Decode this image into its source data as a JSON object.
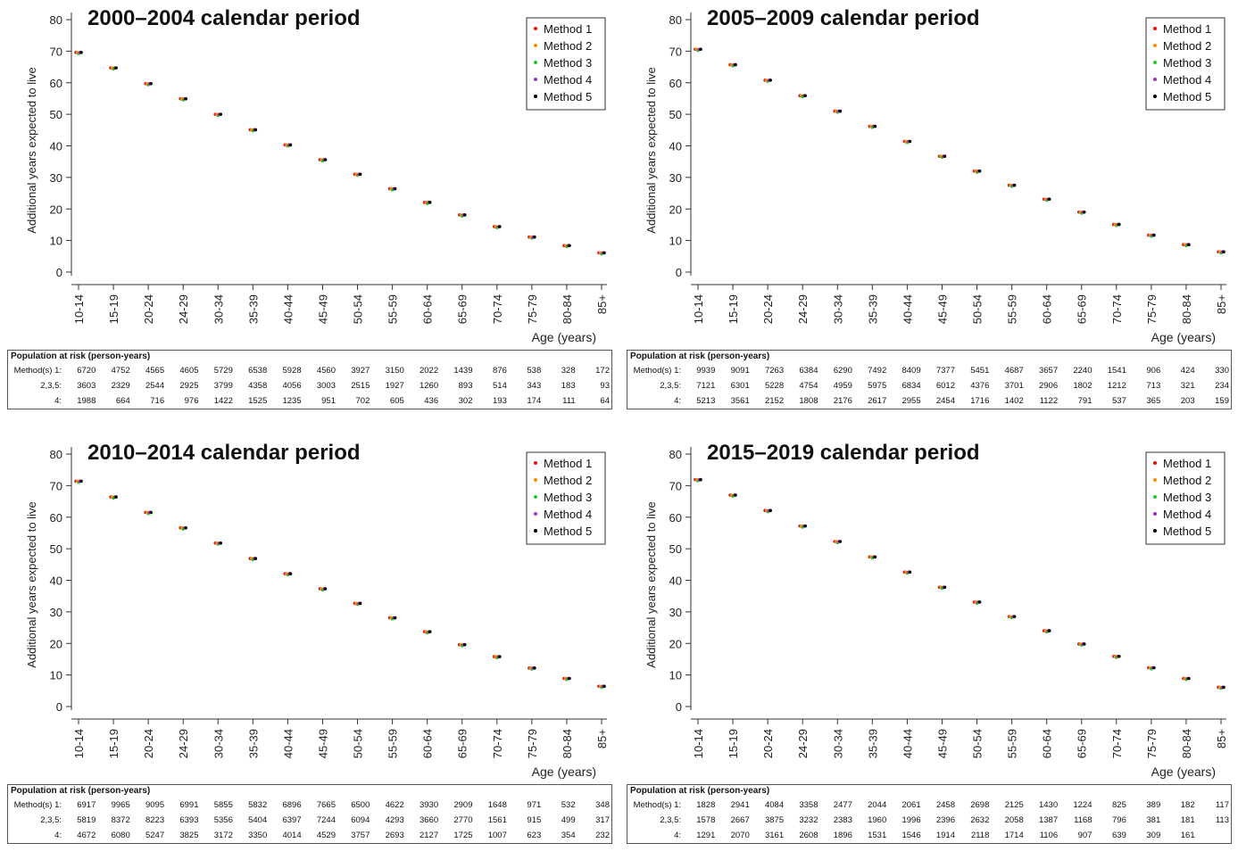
{
  "x_axis_label": "Age (years)",
  "y_axis_label": "Additional years expected to live",
  "risk_table_heading": "Population at risk (person-years)",
  "legend": [
    {
      "name": "Method 1",
      "color": "#ff0000"
    },
    {
      "name": "Method 2",
      "color": "#ff8c00"
    },
    {
      "name": "Method 3",
      "color": "#22cc22"
    },
    {
      "name": "Method 4",
      "color": "#9933cc"
    },
    {
      "name": "Method 5",
      "color": "#000000"
    }
  ],
  "chart_data": [
    {
      "type": "scatter",
      "title": "2000–2004 calendar period",
      "xlabel": "Age (years)",
      "ylabel": "Additional years expected to live",
      "categories": [
        "10-14",
        "15-19",
        "20-24",
        "24-29",
        "30-34",
        "35-39",
        "40-44",
        "45-49",
        "50-54",
        "55-59",
        "60-64",
        "65-69",
        "70-74",
        "75-79",
        "80-84",
        "85+"
      ],
      "values": [
        69.6,
        64.7,
        59.7,
        54.9,
        50.0,
        45.1,
        40.3,
        35.6,
        31.0,
        26.4,
        22.1,
        18.1,
        14.4,
        11.1,
        8.4,
        6.1
      ],
      "ylim": [
        0,
        80
      ],
      "yticks": [
        0,
        10,
        20,
        30,
        40,
        50,
        60,
        70,
        80
      ],
      "legend_position": "top-right",
      "risk_table": [
        {
          "label": "Method(s) 1:",
          "values": [
            "6720",
            "4752",
            "4565",
            "4605",
            "5729",
            "6538",
            "5928",
            "4560",
            "3927",
            "3150",
            "2022",
            "1439",
            "876",
            "538",
            "328",
            "172"
          ]
        },
        {
          "label": "2,3,5:",
          "values": [
            "3603",
            "2329",
            "2544",
            "2925",
            "3799",
            "4358",
            "4056",
            "3003",
            "2515",
            "1927",
            "1260",
            "893",
            "514",
            "343",
            "183",
            "93"
          ]
        },
        {
          "label": "4:",
          "values": [
            "1988",
            "664",
            "716",
            "976",
            "1422",
            "1525",
            "1235",
            "951",
            "702",
            "605",
            "436",
            "302",
            "193",
            "174",
            "111",
            "64"
          ]
        }
      ]
    },
    {
      "type": "scatter",
      "title": "2005–2009 calendar period",
      "xlabel": "Age (years)",
      "ylabel": "Additional years expected to live",
      "categories": [
        "10-14",
        "15-19",
        "20-24",
        "24-29",
        "30-34",
        "35-39",
        "40-44",
        "45-49",
        "50-54",
        "55-59",
        "60-64",
        "65-69",
        "70-74",
        "75-79",
        "80-84",
        "85+"
      ],
      "values": [
        70.6,
        65.7,
        60.8,
        55.9,
        51.0,
        46.2,
        41.4,
        36.7,
        32.0,
        27.5,
        23.1,
        19.0,
        15.1,
        11.7,
        8.7,
        6.4
      ],
      "ylim": [
        0,
        80
      ],
      "yticks": [
        0,
        10,
        20,
        30,
        40,
        50,
        60,
        70,
        80
      ],
      "legend_position": "top-right",
      "risk_table": [
        {
          "label": "Method(s) 1:",
          "values": [
            "9939",
            "9091",
            "7263",
            "6384",
            "6290",
            "7492",
            "8409",
            "7377",
            "5451",
            "4687",
            "3657",
            "2240",
            "1541",
            "906",
            "424",
            "330"
          ]
        },
        {
          "label": "2,3,5:",
          "values": [
            "7121",
            "6301",
            "5228",
            "4754",
            "4959",
            "5975",
            "6834",
            "6012",
            "4376",
            "3701",
            "2906",
            "1802",
            "1212",
            "713",
            "321",
            "234"
          ]
        },
        {
          "label": "4:",
          "values": [
            "5213",
            "3561",
            "2152",
            "1808",
            "2176",
            "2617",
            "2955",
            "2454",
            "1716",
            "1402",
            "1122",
            "791",
            "537",
            "365",
            "203",
            "159"
          ]
        }
      ]
    },
    {
      "type": "scatter",
      "title": "2010–2014 calendar period",
      "xlabel": "Age (years)",
      "ylabel": "Additional years expected to live",
      "categories": [
        "10-14",
        "15-19",
        "20-24",
        "24-29",
        "30-34",
        "35-39",
        "40-44",
        "45-49",
        "50-54",
        "55-59",
        "60-64",
        "65-69",
        "70-74",
        "75-79",
        "80-84",
        "85+"
      ],
      "values": [
        71.4,
        66.4,
        61.5,
        56.6,
        51.8,
        46.9,
        42.1,
        37.3,
        32.7,
        28.1,
        23.7,
        19.6,
        15.8,
        12.2,
        8.9,
        6.4
      ],
      "ylim": [
        0,
        80
      ],
      "yticks": [
        0,
        10,
        20,
        30,
        40,
        50,
        60,
        70,
        80
      ],
      "legend_position": "top-right",
      "risk_table": [
        {
          "label": "Method(s) 1:",
          "values": [
            "6917",
            "9965",
            "9095",
            "6991",
            "5855",
            "5832",
            "6896",
            "7665",
            "6500",
            "4622",
            "3930",
            "2909",
            "1648",
            "971",
            "532",
            "348"
          ]
        },
        {
          "label": "2,3,5:",
          "values": [
            "5819",
            "8372",
            "8223",
            "6393",
            "5356",
            "5404",
            "6397",
            "7244",
            "6094",
            "4293",
            "3660",
            "2770",
            "1561",
            "915",
            "499",
            "317"
          ]
        },
        {
          "label": "4:",
          "values": [
            "4672",
            "6080",
            "5247",
            "3825",
            "3172",
            "3350",
            "4014",
            "4529",
            "3757",
            "2693",
            "2127",
            "1725",
            "1007",
            "623",
            "354",
            "232"
          ]
        }
      ]
    },
    {
      "type": "scatter",
      "title": "2015–2019 calendar period",
      "xlabel": "Age (years)",
      "ylabel": "Additional years expected to live",
      "categories": [
        "10-14",
        "15-19",
        "20-24",
        "24-29",
        "30-34",
        "35-39",
        "40-44",
        "45-49",
        "50-54",
        "55-59",
        "60-64",
        "65-69",
        "70-74",
        "75-79",
        "80-84",
        "85+"
      ],
      "values": [
        71.9,
        67.0,
        62.1,
        57.2,
        52.3,
        47.4,
        42.6,
        37.8,
        33.1,
        28.5,
        24.0,
        19.8,
        15.9,
        12.3,
        8.9,
        6.1
      ],
      "ylim": [
        0,
        80
      ],
      "yticks": [
        0,
        10,
        20,
        30,
        40,
        50,
        60,
        70,
        80
      ],
      "legend_position": "top-right",
      "risk_table": [
        {
          "label": "Method(s) 1:",
          "values": [
            "1828",
            "2941",
            "4084",
            "3358",
            "2477",
            "2044",
            "2061",
            "2458",
            "2698",
            "2125",
            "1430",
            "1224",
            "825",
            "389",
            "182",
            "117"
          ]
        },
        {
          "label": "2,3,5:",
          "values": [
            "1578",
            "2667",
            "3875",
            "3232",
            "2383",
            "1960",
            "1996",
            "2396",
            "2632",
            "2058",
            "1387",
            "1168",
            "796",
            "381",
            "181",
            "113"
          ]
        },
        {
          "label": "4:",
          "values": [
            "1291",
            "2070",
            "3161",
            "2608",
            "1896",
            "1531",
            "1546",
            "1914",
            "2118",
            "1714",
            "1106",
            "907",
            "639",
            "309",
            "161",
            ""
          ]
        }
      ]
    }
  ]
}
